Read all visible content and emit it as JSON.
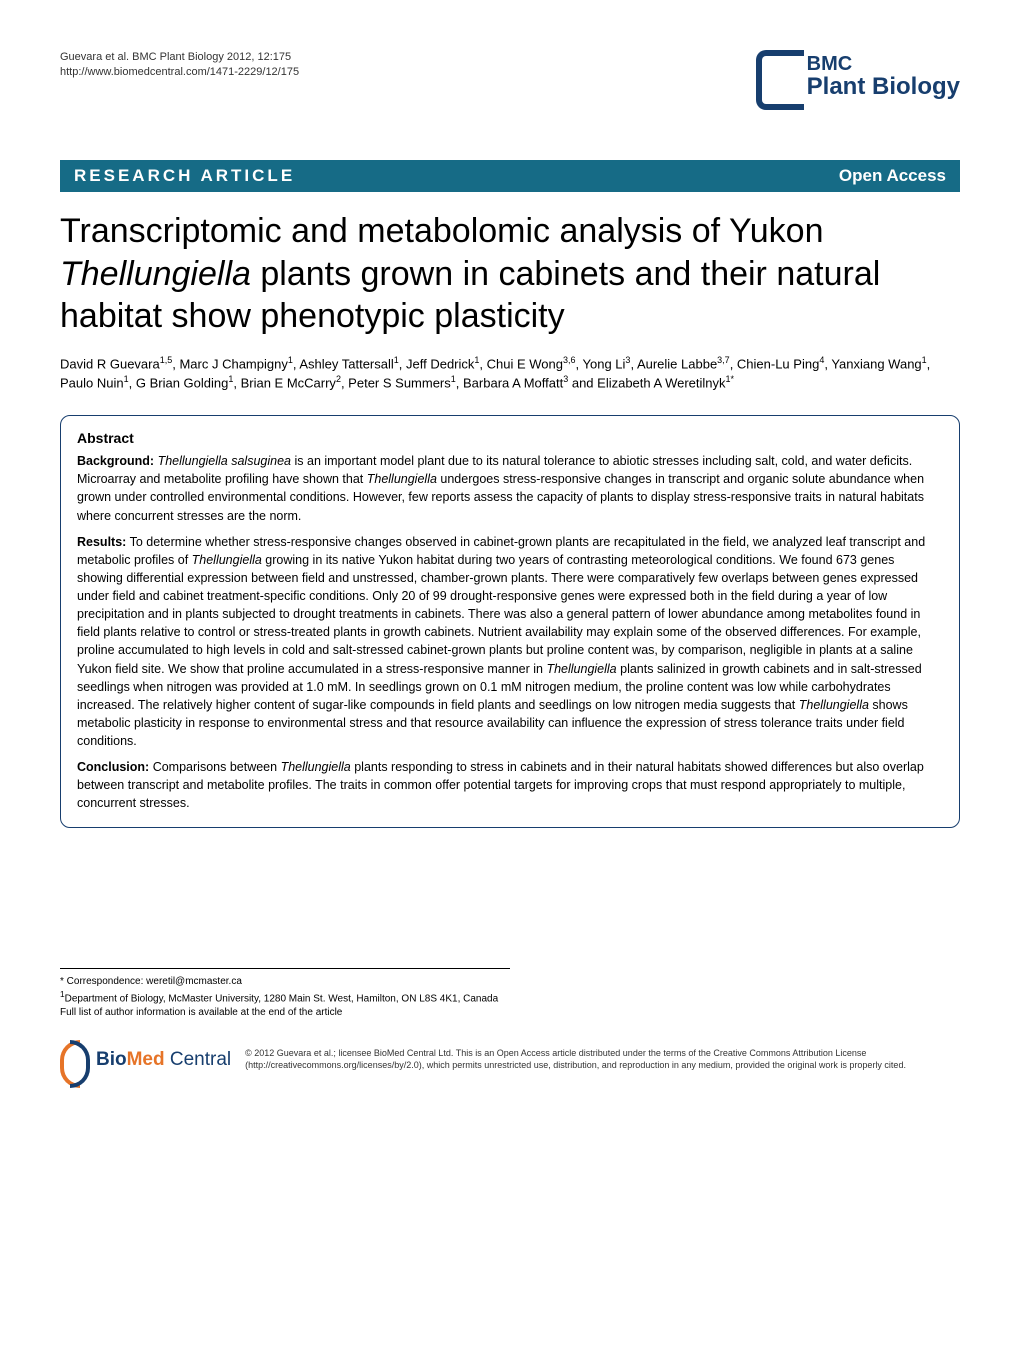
{
  "citation": {
    "line1": "Guevara et al. BMC Plant Biology 2012, 12:175",
    "line2": "http://www.biomedcentral.com/1471-2229/12/175"
  },
  "journal_logo": {
    "prefix": "BMC",
    "name": "Plant Biology",
    "primary_color": "#173e6e"
  },
  "banner": {
    "left": "RESEARCH ARTICLE",
    "right": "Open Access",
    "background_color": "#166b86",
    "text_color": "#ffffff"
  },
  "title": "Transcriptomic and metabolomic analysis of Yukon <em>Thellungiella</em> plants grown in cabinets and their natural habitat show phenotypic plasticity",
  "authors": "David R Guevara<sup>1,5</sup>, Marc J Champigny<sup>1</sup>, Ashley Tattersall<sup>1</sup>, Jeff Dedrick<sup>1</sup>, Chui E Wong<sup>3,6</sup>, Yong Li<sup>3</sup>, Aurelie Labbe<sup>3,7</sup>, Chien-Lu Ping<sup>4</sup>, Yanxiang Wang<sup>1</sup>, Paulo Nuin<sup>1</sup>, G Brian Golding<sup>1</sup>, Brian E McCarry<sup>2</sup>, Peter S Summers<sup>1</sup>, Barbara A Moffatt<sup>3</sup> and Elizabeth A Weretilnyk<sup>1*</sup>",
  "abstract": {
    "heading": "Abstract",
    "sections": [
      {
        "label": "Background:",
        "text": "<em>Thellungiella salsuginea</em> is an important model plant due to its natural tolerance to abiotic stresses including salt, cold, and water deficits. Microarray and metabolite profiling have shown that <em>Thellungiella</em> undergoes stress-responsive changes in transcript and organic solute abundance when grown under controlled environmental conditions. However, few reports assess the capacity of plants to display stress-responsive traits in natural habitats where concurrent stresses are the norm."
      },
      {
        "label": "Results:",
        "text": "To determine whether stress-responsive changes observed in cabinet-grown plants are recapitulated in the field, we analyzed leaf transcript and metabolic profiles of <em>Thellungiella</em> growing in its native Yukon habitat during two years of contrasting meteorological conditions. We found 673 genes showing differential expression between field and unstressed, chamber-grown plants. There were comparatively few overlaps between genes expressed under field and cabinet treatment-specific conditions. Only 20 of 99 drought-responsive genes were expressed both in the field during a year of low precipitation and in plants subjected to drought treatments in cabinets. There was also a general pattern of lower abundance among metabolites found in field plants relative to control or stress-treated plants in growth cabinets. Nutrient availability may explain some of the observed differences. For example, proline accumulated to high levels in cold and salt-stressed cabinet-grown plants but proline content was, by comparison, negligible in plants at a saline Yukon field site. We show that proline accumulated in a stress-responsive manner in <em>Thellungiella</em> plants salinized in growth cabinets and in salt-stressed seedlings when nitrogen was provided at 1.0 mM. In seedlings grown on 0.1 mM nitrogen medium, the proline content was low while carbohydrates increased. The relatively higher content of sugar-like compounds in field plants and seedlings on low nitrogen media suggests that <em>Thellungiella</em> shows metabolic plasticity in response to environmental stress and that resource availability can influence the expression of stress tolerance traits under field conditions."
      },
      {
        "label": "Conclusion:",
        "text": "Comparisons between <em>Thellungiella</em> plants responding to stress in cabinets and in their natural habitats showed differences but also overlap between transcript and metabolite profiles. The traits in common offer potential targets for improving crops that must respond appropriately to multiple, concurrent stresses."
      }
    ]
  },
  "footer": {
    "correspondence": "* Correspondence: weretil@mcmaster.ca",
    "affiliation": "<sup>1</sup>Department of Biology, McMaster University, 1280 Main St. West, Hamilton, ON L8S 4K1, Canada",
    "author_info_note": "Full list of author information is available at the end of the article"
  },
  "publisher_logo": {
    "bio": "Bio",
    "med": "Med",
    "central": " Central",
    "bio_color": "#173e6e",
    "med_color": "#e67428"
  },
  "license": "© 2012 Guevara et al.; licensee BioMed Central Ltd. This is an Open Access article distributed under the terms of the Creative Commons Attribution License (http://creativecommons.org/licenses/by/2.0), which permits unrestricted use, distribution, and reproduction in any medium, provided the original work is properly cited.",
  "typography": {
    "title_fontsize": 34,
    "body_fontsize": 12.5,
    "author_fontsize": 13,
    "footer_fontsize": 10
  },
  "colors": {
    "background": "#ffffff",
    "text": "#000000",
    "banner_bg": "#166b86",
    "abstract_border": "#173e6e",
    "logo_primary": "#173e6e",
    "logo_accent": "#e67428"
  }
}
